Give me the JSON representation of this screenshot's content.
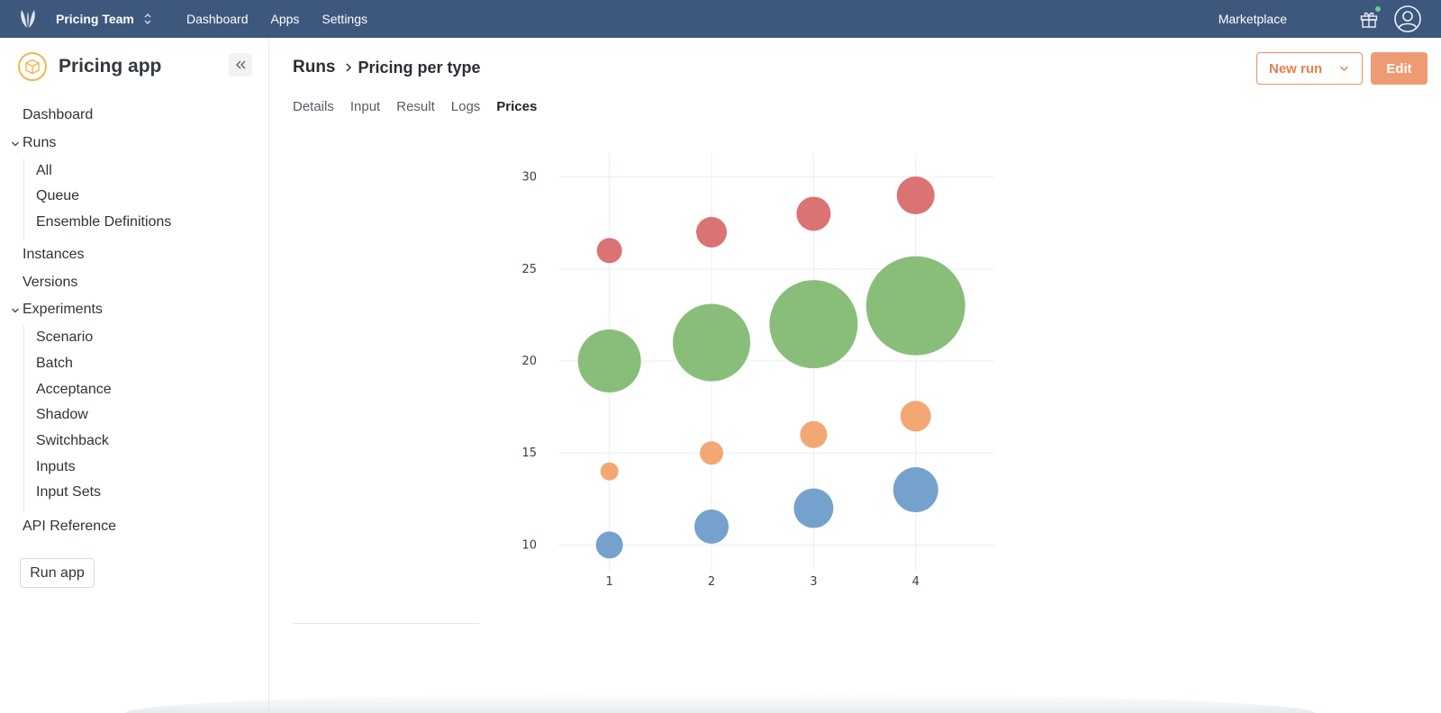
{
  "topbar": {
    "team": "Pricing Team",
    "nav": [
      "Dashboard",
      "Apps",
      "Settings"
    ],
    "marketplace": "Marketplace",
    "icons": [
      "logo-icon",
      "chevron-updown-icon",
      "gift-icon",
      "user-icon"
    ],
    "notification_color": "#5fd08a",
    "bar_color": "#3d577d"
  },
  "sidebar": {
    "app_title": "Pricing app",
    "dashboard": "Dashboard",
    "runs": {
      "label": "Runs",
      "children": [
        "All",
        "Queue",
        "Ensemble Definitions"
      ]
    },
    "instances": "Instances",
    "versions": "Versions",
    "experiments": {
      "label": "Experiments",
      "children": [
        "Scenario",
        "Batch",
        "Acceptance",
        "Shadow",
        "Switchback",
        "Inputs",
        "Input Sets"
      ]
    },
    "api_reference": "API Reference",
    "run_app": "Run app"
  },
  "main": {
    "breadcrumb": {
      "parent": "Runs",
      "current": "Pricing per type"
    },
    "buttons": {
      "new_run": "New run",
      "edit": "Edit",
      "accent": "#e8804d"
    },
    "tabs": [
      "Details",
      "Input",
      "Result",
      "Logs",
      "Prices"
    ],
    "active_tab": "Prices"
  },
  "chart_data": {
    "type": "scatter",
    "title": "",
    "xlabel": "",
    "ylabel": "",
    "x_ticks": [
      1,
      2,
      3,
      4
    ],
    "y_ticks": [
      10,
      15,
      20,
      25,
      30
    ],
    "xlim": [
      0.5,
      4.77
    ],
    "ylim": [
      8.6,
      31.3
    ],
    "grid": true,
    "legend": "none",
    "series": [
      {
        "color": "#6e9dc9",
        "x": [
          1,
          2,
          3,
          4
        ],
        "y": [
          10,
          11,
          12,
          13
        ],
        "size": [
          15,
          19,
          22,
          25
        ]
      },
      {
        "color": "#f2a36b",
        "x": [
          1,
          2,
          3,
          4
        ],
        "y": [
          14,
          15,
          16,
          17
        ],
        "size": [
          10,
          13,
          15,
          17
        ]
      },
      {
        "color": "#83bb73",
        "x": [
          1,
          2,
          3,
          4
        ],
        "y": [
          20,
          21,
          22,
          23
        ],
        "size": [
          35,
          43,
          49,
          55
        ]
      },
      {
        "color": "#d96c6c",
        "x": [
          1,
          2,
          3,
          4
        ],
        "y": [
          26,
          27,
          28,
          29
        ],
        "size": [
          14,
          17,
          19,
          21
        ]
      }
    ]
  }
}
